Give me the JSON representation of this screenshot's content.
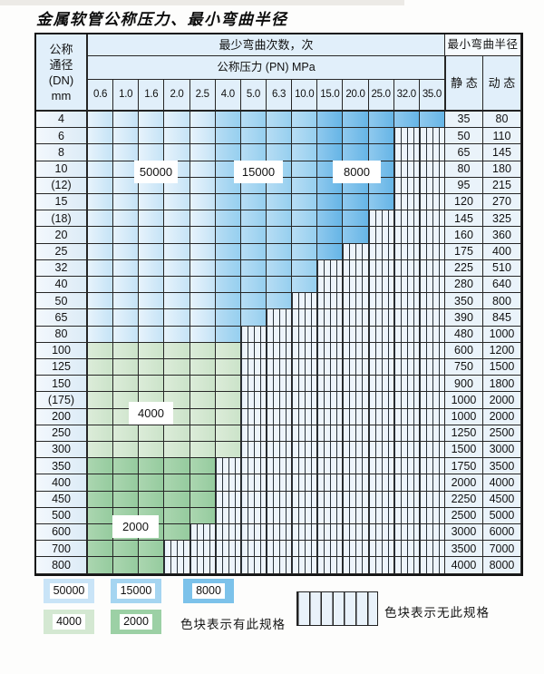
{
  "page_title": "金属软管公称压力、最小弯曲半径",
  "table": {
    "corner_lines": [
      "公称",
      "通径",
      "(DN)",
      "mm"
    ],
    "bend_cycles_header": "最少弯曲次数，次",
    "pressure_header": "公称压力 (PN) MPa",
    "bend_radius_header": "最小弯曲半径",
    "static_label": "静 态",
    "dynamic_label": "动 态"
  },
  "overlays": {
    "o50000": "50000",
    "o15000": "15000",
    "o8000": "8000",
    "o4000": "4000",
    "o2000": "2000"
  },
  "legend": {
    "items": [
      {
        "label": "50000",
        "color": "#c9e4f7"
      },
      {
        "label": "15000",
        "color": "#a5d5f1"
      },
      {
        "label": "8000",
        "color": "#7cc2ea"
      },
      {
        "label": "4000",
        "color": "#d4e8d2"
      },
      {
        "label": "2000",
        "color": "#9cd0a5"
      }
    ],
    "has_spec_text": "色块表示有此规格",
    "no_spec_text": "色块表示无此规格"
  },
  "chart_data": {
    "type": "table",
    "title": "金属软管公称压力、最小弯曲半径",
    "pressure_values": [
      "0.6",
      "1.0",
      "1.6",
      "2.0",
      "2.5",
      "4.0",
      "5.0",
      "6.3",
      "10.0",
      "15.0",
      "20.0",
      "25.0",
      "32.0",
      "35.0"
    ],
    "cycle_zones": {
      "blue_by_pressure_column": {
        "50000": [
          "0.6",
          "2.5"
        ],
        "15000": [
          "4.0",
          "10.0"
        ],
        "8000": [
          "15.0",
          "35.0"
        ]
      },
      "green_by_dn_row": {
        "4000": [
          "100",
          "300"
        ],
        "2000": [
          "350",
          "800"
        ]
      }
    },
    "legend_note_colored": "色块表示有此规格",
    "legend_note_striped": "色块表示无此规格",
    "columns": [
      "公称通径(DN) mm",
      "0.6",
      "1.0",
      "1.6",
      "2.0",
      "2.5",
      "4.0",
      "5.0",
      "6.3",
      "10.0",
      "15.0",
      "20.0",
      "25.0",
      "32.0",
      "35.0",
      "静态",
      "动态"
    ],
    "rows": [
      {
        "dn": "4",
        "max_pn": "35.0",
        "zone": "blue",
        "static": "35",
        "dynamic": "80"
      },
      {
        "dn": "6",
        "max_pn": "25.0",
        "zone": "blue",
        "static": "50",
        "dynamic": "110"
      },
      {
        "dn": "8",
        "max_pn": "25.0",
        "zone": "blue",
        "static": "65",
        "dynamic": "145"
      },
      {
        "dn": "10",
        "max_pn": "25.0",
        "zone": "blue",
        "static": "80",
        "dynamic": "180"
      },
      {
        "dn": "(12)",
        "max_pn": "25.0",
        "zone": "blue",
        "static": "95",
        "dynamic": "215"
      },
      {
        "dn": "15",
        "max_pn": "25.0",
        "zone": "blue",
        "static": "120",
        "dynamic": "270"
      },
      {
        "dn": "(18)",
        "max_pn": "20.0",
        "zone": "blue",
        "static": "145",
        "dynamic": "325"
      },
      {
        "dn": "20",
        "max_pn": "20.0",
        "zone": "blue",
        "static": "160",
        "dynamic": "360"
      },
      {
        "dn": "25",
        "max_pn": "15.0",
        "zone": "blue",
        "static": "175",
        "dynamic": "400"
      },
      {
        "dn": "32",
        "max_pn": "10.0",
        "zone": "blue",
        "static": "225",
        "dynamic": "510"
      },
      {
        "dn": "40",
        "max_pn": "10.0",
        "zone": "blue",
        "static": "280",
        "dynamic": "640"
      },
      {
        "dn": "50",
        "max_pn": "6.3",
        "zone": "blue",
        "static": "350",
        "dynamic": "800"
      },
      {
        "dn": "65",
        "max_pn": "5.0",
        "zone": "blue",
        "static": "390",
        "dynamic": "845"
      },
      {
        "dn": "80",
        "max_pn": "4.0",
        "zone": "blue",
        "static": "480",
        "dynamic": "1000"
      },
      {
        "dn": "100",
        "max_pn": "4.0",
        "zone": "green4000",
        "static": "600",
        "dynamic": "1200"
      },
      {
        "dn": "125",
        "max_pn": "4.0",
        "zone": "green4000",
        "static": "750",
        "dynamic": "1500"
      },
      {
        "dn": "150",
        "max_pn": "4.0",
        "zone": "green4000",
        "static": "900",
        "dynamic": "1800"
      },
      {
        "dn": "(175)",
        "max_pn": "4.0",
        "zone": "green4000",
        "static": "1000",
        "dynamic": "2000"
      },
      {
        "dn": "200",
        "max_pn": "4.0",
        "zone": "green4000",
        "static": "1000",
        "dynamic": "2000"
      },
      {
        "dn": "250",
        "max_pn": "4.0",
        "zone": "green4000",
        "static": "1250",
        "dynamic": "2500"
      },
      {
        "dn": "300",
        "max_pn": "4.0",
        "zone": "green4000",
        "static": "1500",
        "dynamic": "3000"
      },
      {
        "dn": "350",
        "max_pn": "2.5",
        "zone": "green2000",
        "static": "1750",
        "dynamic": "3500"
      },
      {
        "dn": "400",
        "max_pn": "2.5",
        "zone": "green2000",
        "static": "2000",
        "dynamic": "4000"
      },
      {
        "dn": "450",
        "max_pn": "2.5",
        "zone": "green2000",
        "static": "2250",
        "dynamic": "4500"
      },
      {
        "dn": "500",
        "max_pn": "2.5",
        "zone": "green2000",
        "static": "2500",
        "dynamic": "5000"
      },
      {
        "dn": "600",
        "max_pn": "2.0",
        "zone": "green2000",
        "static": "3000",
        "dynamic": "6000"
      },
      {
        "dn": "700",
        "max_pn": "1.6",
        "zone": "green2000",
        "static": "3500",
        "dynamic": "7000"
      },
      {
        "dn": "800",
        "max_pn": "1.6",
        "zone": "green2000",
        "static": "4000",
        "dynamic": "8000"
      }
    ]
  }
}
